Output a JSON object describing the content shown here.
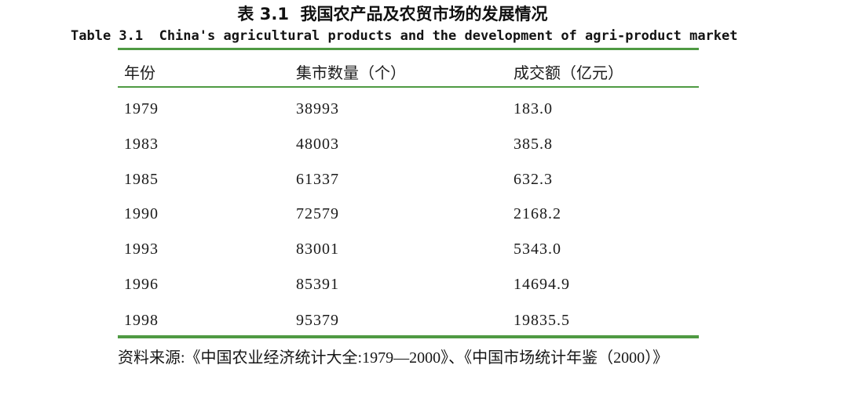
{
  "page": {
    "title_cn": "表 3.1  我国农产品及农贸市场的发展情况",
    "title_en": "Table 3.1  China's agricultural products and the development of agri-product market"
  },
  "table": {
    "headers": [
      "年份",
      "集市数量（个）",
      "成交额（亿元）"
    ],
    "rows": [
      [
        "1979",
        "38993",
        "183.0"
      ],
      [
        "1983",
        "48003",
        "385.8"
      ],
      [
        "1985",
        "61337",
        "632.3"
      ],
      [
        "1990",
        "72579",
        "2168.2"
      ],
      [
        "1993",
        "83001",
        "5343.0"
      ],
      [
        "1996",
        "85391",
        "14694.9"
      ],
      [
        "1998",
        "95379",
        "19835.5"
      ]
    ]
  },
  "source_note": "资料来源:《中国农业经济统计大全:1979—2000》、《中国市场统计年鉴（2000）》",
  "colors": {
    "rule_green": "#4f9a43",
    "text": "#1b1b1b",
    "background": "#ffffff"
  },
  "chart_data": {
    "type": "table",
    "title": "表 3.1 我国农产品及农贸市场的发展情况 / Table 3.1 China's agricultural products and the development of agri-product market",
    "columns": [
      "年份",
      "集市数量（个）",
      "成交额（亿元）"
    ],
    "years": [
      1979,
      1983,
      1985,
      1990,
      1993,
      1996,
      1998
    ],
    "market_count": [
      38993,
      48003,
      61337,
      72579,
      83001,
      85391,
      95379
    ],
    "turnover_100m_yuan": [
      183.0,
      385.8,
      632.3,
      2168.2,
      5343.0,
      14694.9,
      19835.5
    ],
    "source": "《中国农业经济统计大全:1979—2000》、《中国市场统计年鉴（2000）》"
  }
}
